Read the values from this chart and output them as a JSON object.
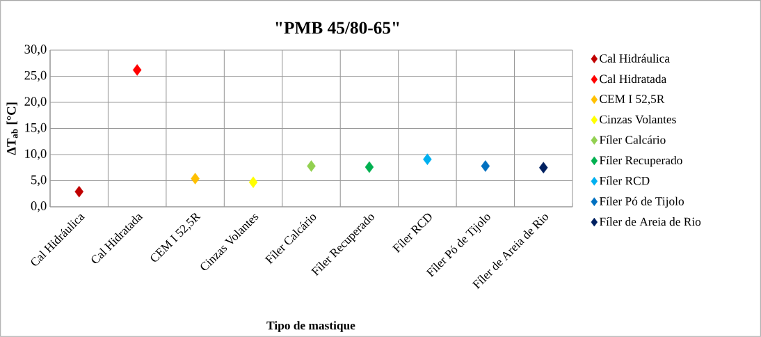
{
  "chart_data": {
    "type": "scatter",
    "title": "\"PMB 45/80-65\"",
    "xlabel": "Tipo de mastique",
    "ylabel": "ΔT$_{ab}$ [°C]",
    "categories": [
      "Cal Hidráulica",
      "Cal Hidratada",
      "CEM I 52,5R",
      "Cinzas Volantes",
      "Fíler Calcário",
      "Fíler Recuperado",
      "Fíler RCD",
      "Fíler Pó de Tijolo",
      "Fíler de Areia de Rio"
    ],
    "ylim": [
      0,
      30
    ],
    "yticks": [
      {
        "value": 0,
        "label": "0,0"
      },
      {
        "value": 5,
        "label": "5,0"
      },
      {
        "value": 10,
        "label": "10,0"
      },
      {
        "value": 15,
        "label": "15,0"
      },
      {
        "value": 20,
        "label": "20,0"
      },
      {
        "value": 25,
        "label": "25,0"
      },
      {
        "value": 30,
        "label": "30,0"
      }
    ],
    "grid": true,
    "legend": "right",
    "marker": "diamond",
    "series": [
      {
        "name": "Cal Hidráulica",
        "color": "#c00000",
        "values": [
          2.9,
          null,
          null,
          null,
          null,
          null,
          null,
          null,
          null
        ]
      },
      {
        "name": "Cal Hidratada",
        "color": "#ff0000",
        "values": [
          null,
          26.2,
          null,
          null,
          null,
          null,
          null,
          null,
          null
        ]
      },
      {
        "name": "CEM I 52,5R",
        "color": "#ffc000",
        "values": [
          null,
          null,
          5.4,
          null,
          null,
          null,
          null,
          null,
          null
        ]
      },
      {
        "name": "Cinzas Volantes",
        "color": "#ffff00",
        "values": [
          null,
          null,
          null,
          4.7,
          null,
          null,
          null,
          null,
          null
        ]
      },
      {
        "name": "Fíler Calcário",
        "color": "#92d050",
        "values": [
          null,
          null,
          null,
          null,
          7.8,
          null,
          null,
          null,
          null
        ]
      },
      {
        "name": "Fíler Recuperado",
        "color": "#00b050",
        "values": [
          null,
          null,
          null,
          null,
          null,
          7.6,
          null,
          null,
          null
        ]
      },
      {
        "name": "Fíler RCD",
        "color": "#00b0f0",
        "values": [
          null,
          null,
          null,
          null,
          null,
          null,
          9.1,
          null,
          null
        ]
      },
      {
        "name": "Fíler Pó de Tijolo",
        "color": "#0070c0",
        "values": [
          null,
          null,
          null,
          null,
          null,
          null,
          null,
          7.8,
          null
        ]
      },
      {
        "name": "Fíler de Areia de Rio",
        "color": "#002060",
        "values": [
          null,
          null,
          null,
          null,
          null,
          null,
          null,
          null,
          7.5
        ]
      }
    ]
  }
}
